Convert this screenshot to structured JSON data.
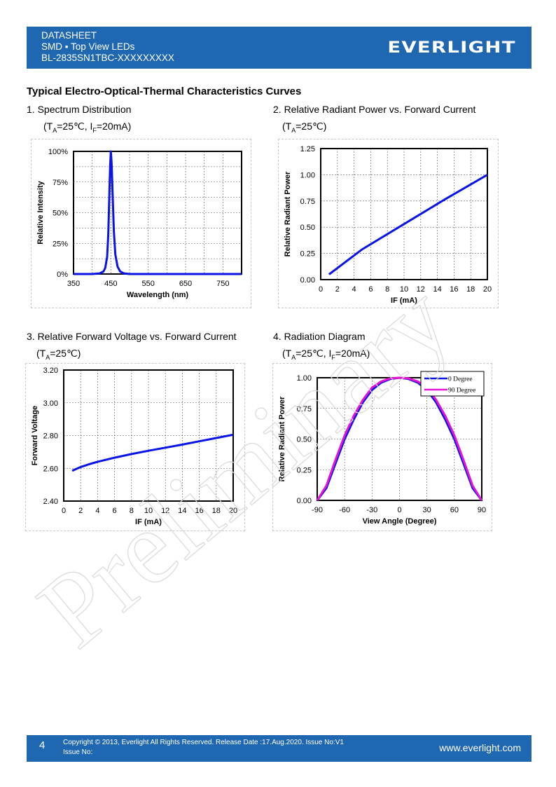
{
  "header": {
    "line1": "DATASHEET",
    "line2": "SMD ▪ Top View LEDs",
    "line3": "BL-2835SN1TBC-XXXXXXXXX",
    "logo": "EVERLIGHT"
  },
  "section_title": "Typical Electro-Optical-Thermal Characteristics Curves",
  "charts": [
    {
      "title": "1. Spectrum Distribution",
      "cond_prefix": "(T",
      "cond_sub1": "A",
      "cond_mid": "=25℃, I",
      "cond_sub2": "F",
      "cond_suffix": "=20mA)"
    },
    {
      "title": "2. Relative Radiant Power vs. Forward Current",
      "cond_prefix": "(T",
      "cond_sub1": "A",
      "cond_mid": "=25℃)",
      "cond_sub2": "",
      "cond_suffix": ""
    },
    {
      "title": "3. Relative Forward Voltage vs. Forward Current",
      "cond_prefix": "(T",
      "cond_sub1": "A",
      "cond_mid": "=25℃)",
      "cond_sub2": "",
      "cond_suffix": ""
    },
    {
      "title": "4. Radiation Diagram",
      "cond_prefix": "(T",
      "cond_sub1": "A",
      "cond_mid": "=25℃, I",
      "cond_sub2": "F",
      "cond_suffix": "=20mA)"
    }
  ],
  "chart_data": [
    {
      "type": "line",
      "xlabel": "Wavelength (nm)",
      "ylabel": "Relative Intensity",
      "xlim": [
        350,
        800
      ],
      "ylim": [
        0,
        100
      ],
      "xticks": [
        "350",
        "450",
        "550",
        "650",
        "750"
      ],
      "yticks": [
        "0%",
        "25%",
        "50%",
        "75%",
        "100%"
      ],
      "grid": true,
      "color": "#0a14e6",
      "series": [
        {
          "x": [
            350,
            400,
            420,
            430,
            435,
            440,
            443,
            446,
            448,
            450,
            452,
            455,
            458,
            462,
            468,
            475,
            485,
            500,
            800
          ],
          "y": [
            0,
            0,
            0.5,
            2,
            5,
            14,
            32,
            65,
            88,
            100,
            90,
            62,
            35,
            16,
            6,
            2,
            0.5,
            0,
            0
          ]
        }
      ]
    },
    {
      "type": "line",
      "xlabel": "IF (mA)",
      "ylabel": "Relative Radiant Power",
      "xlim": [
        0,
        20
      ],
      "ylim": [
        0,
        1.25
      ],
      "xticks": [
        "0",
        "2",
        "4",
        "6",
        "8",
        "10",
        "12",
        "14",
        "16",
        "18",
        "20"
      ],
      "yticks": [
        "0.00",
        "0.25",
        "0.50",
        "0.75",
        "1.00",
        "1.25"
      ],
      "grid": true,
      "color": "#0a14e6",
      "series": [
        {
          "x": [
            1,
            5,
            10,
            15,
            20
          ],
          "y": [
            0.05,
            0.29,
            0.53,
            0.77,
            1.0
          ]
        }
      ]
    },
    {
      "type": "line",
      "xlabel": "IF (mA)",
      "ylabel": "Forward Voltage",
      "xlim": [
        0,
        20
      ],
      "ylim": [
        2.4,
        3.2
      ],
      "xticks": [
        "0",
        "2",
        "4",
        "6",
        "8",
        "10",
        "12",
        "14",
        "16",
        "18",
        "20"
      ],
      "yticks": [
        "2.40",
        "2.60",
        "2.80",
        "3.00",
        "3.20"
      ],
      "grid": true,
      "color": "#0a14e6",
      "series": [
        {
          "x": [
            1,
            2,
            3,
            4,
            6,
            8,
            10,
            12,
            14,
            16,
            18,
            20
          ],
          "y": [
            2.585,
            2.608,
            2.625,
            2.64,
            2.665,
            2.687,
            2.707,
            2.726,
            2.745,
            2.765,
            2.785,
            2.805
          ]
        }
      ]
    },
    {
      "type": "line",
      "xlabel": "View Angle (Degree)",
      "ylabel": "Relative Radiant Power",
      "xlim": [
        -90,
        90
      ],
      "ylim": [
        0,
        1.0
      ],
      "xticks": [
        "-90",
        "-60",
        "-30",
        "0",
        "30",
        "60",
        "90"
      ],
      "yticks": [
        "0.00",
        "0.25",
        "0.50",
        "0.75",
        "1.00"
      ],
      "grid": true,
      "legend_position": "top-right",
      "series": [
        {
          "name": "0 Degree",
          "color": "#0a14e6",
          "x": [
            -90,
            -80,
            -70,
            -60,
            -50,
            -40,
            -30,
            -20,
            -10,
            0,
            10,
            20,
            30,
            40,
            50,
            60,
            70,
            80,
            90
          ],
          "y": [
            0,
            0.1,
            0.3,
            0.5,
            0.66,
            0.8,
            0.9,
            0.96,
            0.99,
            1.0,
            0.99,
            0.96,
            0.9,
            0.8,
            0.66,
            0.5,
            0.3,
            0.1,
            0
          ]
        },
        {
          "name": "90 Degree",
          "color": "#e614d2",
          "x": [
            -90,
            -80,
            -70,
            -60,
            -50,
            -40,
            -30,
            -20,
            -10,
            0,
            10,
            20,
            30,
            40,
            50,
            60,
            70,
            80,
            90
          ],
          "y": [
            0,
            0.12,
            0.33,
            0.53,
            0.69,
            0.82,
            0.92,
            0.97,
            0.995,
            1.0,
            0.995,
            0.97,
            0.92,
            0.82,
            0.69,
            0.53,
            0.33,
            0.12,
            0
          ]
        }
      ]
    }
  ],
  "watermark": "Preliminary",
  "footer": {
    "page": "4",
    "copyright": "Copyright © 2013, Everlight All Rights Reserved. Release Date :17.Aug.2020. Issue No:V1",
    "issue": "Issue No:",
    "website": "www.everlight.com"
  }
}
